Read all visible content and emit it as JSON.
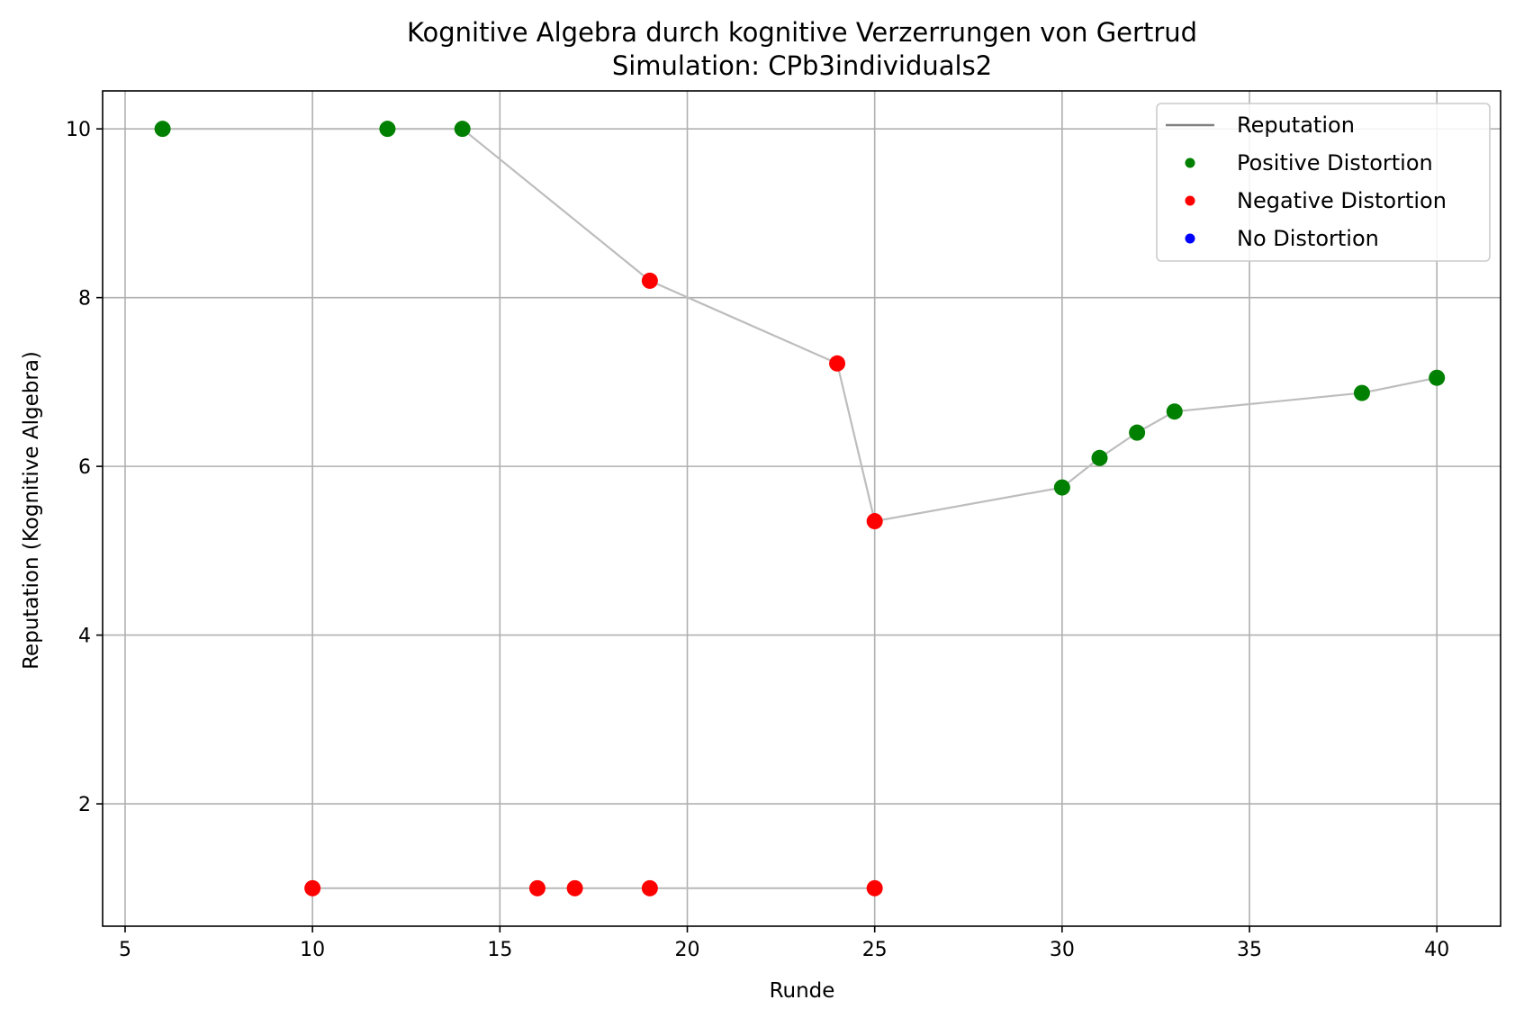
{
  "chart_data": {
    "type": "scatter",
    "title": "Kognitive Algebra durch kognitive Verzerrungen von Gertrud",
    "subtitle": "Simulation: CPb3individuals2",
    "xlabel": "Runde",
    "ylabel": "Reputation (Kognitive Algebra)",
    "xlim": [
      4.4,
      41.7
    ],
    "ylim": [
      0.55,
      10.45
    ],
    "xticks": [
      5,
      10,
      15,
      20,
      25,
      30,
      35,
      40
    ],
    "yticks": [
      2,
      4,
      6,
      8,
      10
    ],
    "grid": true,
    "legend_position": "top-right",
    "colors": {
      "line": "#bdbdbd",
      "legend_line": "#808080",
      "positive": "#008000",
      "negative": "#ff0000",
      "none": "#0000ff"
    },
    "legend": [
      {
        "label": "Reputation",
        "kind": "line",
        "color": "#808080"
      },
      {
        "label": "Positive Distortion",
        "kind": "dot",
        "color": "#008000"
      },
      {
        "label": "Negative Distortion",
        "kind": "dot",
        "color": "#ff0000"
      },
      {
        "label": "No Distortion",
        "kind": "dot",
        "color": "#0000ff"
      }
    ],
    "lines": [
      {
        "points": [
          {
            "x": 6,
            "y": 10.0,
            "type": "positive"
          },
          {
            "x": 12,
            "y": 10.0,
            "type": "positive"
          },
          {
            "x": 14,
            "y": 10.0,
            "type": "positive"
          },
          {
            "x": 19,
            "y": 8.2,
            "type": "negative"
          },
          {
            "x": 24,
            "y": 7.22,
            "type": "negative"
          },
          {
            "x": 25,
            "y": 5.35,
            "type": "negative"
          },
          {
            "x": 30,
            "y": 5.75,
            "type": "positive"
          },
          {
            "x": 31,
            "y": 6.1,
            "type": "positive"
          },
          {
            "x": 32,
            "y": 6.4,
            "type": "positive"
          },
          {
            "x": 33,
            "y": 6.65,
            "type": "positive"
          },
          {
            "x": 38,
            "y": 6.87,
            "type": "positive"
          },
          {
            "x": 40,
            "y": 7.05,
            "type": "positive"
          }
        ]
      },
      {
        "points": [
          {
            "x": 10,
            "y": 1.0,
            "type": "negative"
          },
          {
            "x": 16,
            "y": 1.0,
            "type": "negative"
          },
          {
            "x": 17,
            "y": 1.0,
            "type": "negative"
          },
          {
            "x": 19,
            "y": 1.0,
            "type": "negative"
          },
          {
            "x": 25,
            "y": 1.0,
            "type": "negative"
          }
        ]
      }
    ]
  }
}
